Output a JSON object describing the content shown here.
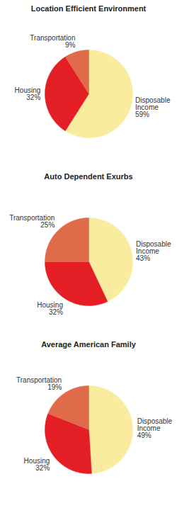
{
  "chart_data": [
    {
      "type": "pie",
      "title": "Location Efficient Environment",
      "categories": [
        "Disposable Income",
        "Housing",
        "Transportation"
      ],
      "values": [
        59,
        32,
        9
      ],
      "value_labels": [
        "59%",
        "32%",
        "9%"
      ],
      "colors": [
        "#F9EC9F",
        "#E31E25",
        "#E06B4A"
      ],
      "data_labels": true
    },
    {
      "type": "pie",
      "title": "Auto Dependent Exurbs",
      "categories": [
        "Disposable Income",
        "Housing",
        "Transportation"
      ],
      "values": [
        43,
        32,
        25
      ],
      "value_labels": [
        "43%",
        "32%",
        "25%"
      ],
      "colors": [
        "#F9EC9F",
        "#E31E25",
        "#E06B4A"
      ],
      "data_labels": true
    },
    {
      "type": "pie",
      "title": "Average American Family",
      "categories": [
        "Disposable Income",
        "Housing",
        "Transportation"
      ],
      "values": [
        49,
        32,
        19
      ],
      "value_labels": [
        "49%",
        "32%",
        "19%"
      ],
      "colors": [
        "#F9EC9F",
        "#E31E25",
        "#E06B4A"
      ],
      "data_labels": true
    }
  ]
}
